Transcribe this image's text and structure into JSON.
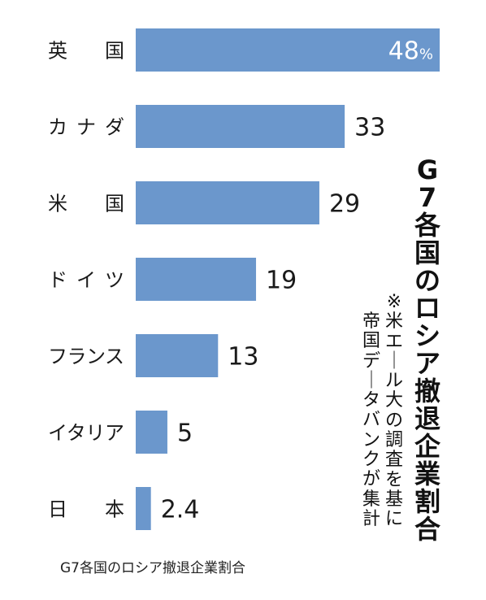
{
  "chart_data": {
    "type": "bar",
    "orientation": "horizontal",
    "title": "G7各国のロシア撤退企業割合",
    "note_lines": [
      "※米エール大の調査を基に",
      "帝国データバンクが集計"
    ],
    "categories": [
      "英　国",
      "カナダ",
      "米　国",
      "ドイツ",
      "フランス",
      "イタリア",
      "日　本"
    ],
    "values": [
      48,
      33,
      29,
      19,
      13,
      5,
      2.4
    ],
    "value_labels": [
      "48",
      "33",
      "29",
      "19",
      "13",
      "5",
      "2.4"
    ],
    "unit": "%",
    "xlim": [
      0,
      48
    ],
    "bar_color": "#6b97cc",
    "grid": false
  },
  "caption": "G7各国のロシア撤退企業割合"
}
